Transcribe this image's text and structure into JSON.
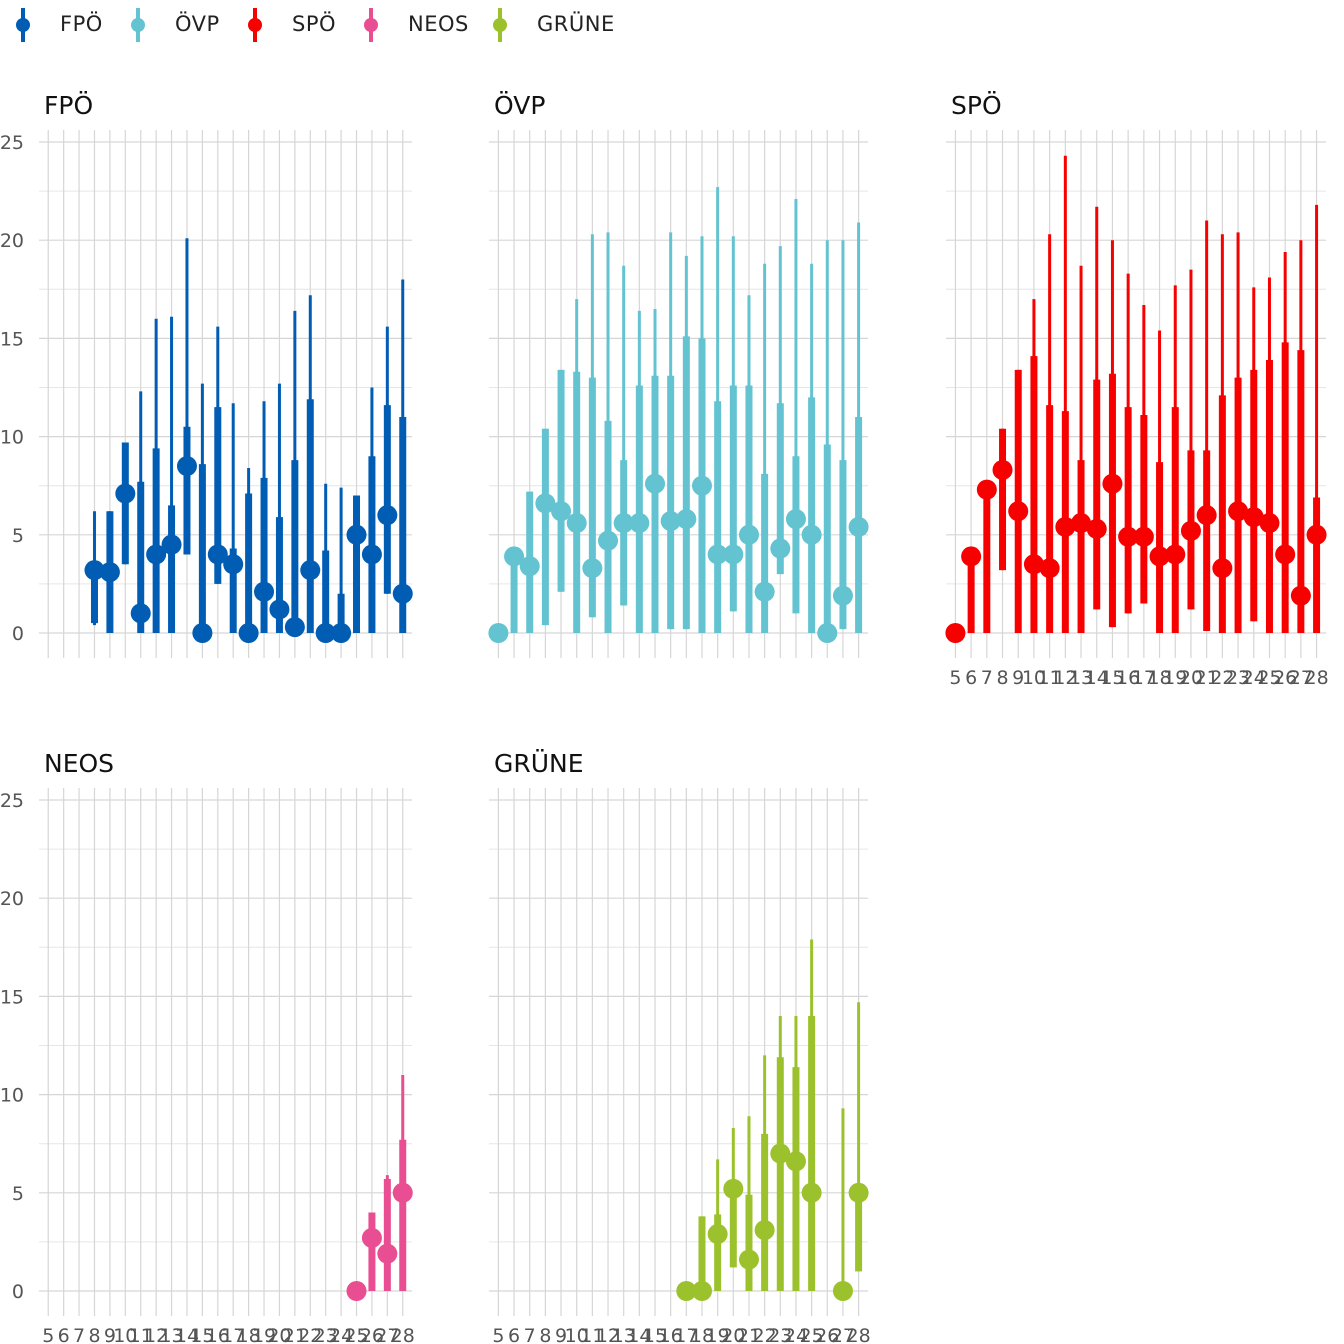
{
  "legend": [
    {
      "label": "FPÖ",
      "color": "#005db3"
    },
    {
      "label": "ÖVP",
      "color": "#63c3d0"
    },
    {
      "label": "SPÖ",
      "color": "#f70000"
    },
    {
      "label": "NEOS",
      "color": "#e84e91"
    },
    {
      "label": "GRÜNE",
      "color": "#9bc22c"
    }
  ],
  "chart_data": [
    {
      "type": "pointrange",
      "title": "FPÖ",
      "color": "#005db3",
      "x_ticks": [
        5,
        6,
        7,
        8,
        9,
        10,
        11,
        12,
        13,
        14,
        15,
        16,
        17,
        18,
        19,
        20,
        21,
        22,
        23,
        24,
        25,
        26,
        27,
        28
      ],
      "y_ticks": [
        0,
        5,
        10,
        15,
        20,
        25
      ],
      "ylim": [
        -1.2,
        25.5
      ],
      "points": [
        {
          "x": 8,
          "y": 3.2,
          "lo50": 0.5,
          "hi50": 3.2,
          "lo90": 0.4,
          "hi90": 6.2
        },
        {
          "x": 9,
          "y": 3.1,
          "lo50": 0.0,
          "hi50": 6.2,
          "lo90": 0.0,
          "hi90": 6.2
        },
        {
          "x": 10,
          "y": 7.1,
          "lo50": 3.5,
          "hi50": 9.7,
          "lo90": 3.5,
          "hi90": 9.7
        },
        {
          "x": 11,
          "y": 1.0,
          "lo50": 0.0,
          "hi50": 7.7,
          "lo90": 0.0,
          "hi90": 12.3
        },
        {
          "x": 12,
          "y": 4.0,
          "lo50": 0.0,
          "hi50": 9.4,
          "lo90": 0.0,
          "hi90": 16.0
        },
        {
          "x": 13,
          "y": 4.5,
          "lo50": 0.0,
          "hi50": 6.5,
          "lo90": 0.0,
          "hi90": 16.1
        },
        {
          "x": 14,
          "y": 8.5,
          "lo50": 4.0,
          "hi50": 10.5,
          "lo90": 4.0,
          "hi90": 20.1
        },
        {
          "x": 15,
          "y": 0.0,
          "lo50": 0.0,
          "hi50": 8.6,
          "lo90": 0.0,
          "hi90": 12.7
        },
        {
          "x": 16,
          "y": 4.0,
          "lo50": 2.5,
          "hi50": 11.5,
          "lo90": 2.5,
          "hi90": 15.6
        },
        {
          "x": 17,
          "y": 3.5,
          "lo50": 0.0,
          "hi50": 4.3,
          "lo90": 0.0,
          "hi90": 11.7
        },
        {
          "x": 18,
          "y": 0.0,
          "lo50": 0.0,
          "hi50": 7.1,
          "lo90": 0.0,
          "hi90": 8.4
        },
        {
          "x": 19,
          "y": 2.1,
          "lo50": 0.0,
          "hi50": 7.9,
          "lo90": 0.0,
          "hi90": 11.8
        },
        {
          "x": 20,
          "y": 1.2,
          "lo50": 0.0,
          "hi50": 5.9,
          "lo90": 0.0,
          "hi90": 12.7
        },
        {
          "x": 21,
          "y": 0.3,
          "lo50": 0.0,
          "hi50": 8.8,
          "lo90": 0.0,
          "hi90": 16.4
        },
        {
          "x": 22,
          "y": 3.2,
          "lo50": 0.0,
          "hi50": 11.9,
          "lo90": 0.0,
          "hi90": 17.2
        },
        {
          "x": 23,
          "y": 0.0,
          "lo50": 0.0,
          "hi50": 4.2,
          "lo90": 0.0,
          "hi90": 7.6
        },
        {
          "x": 24,
          "y": 0.0,
          "lo50": 0.0,
          "hi50": 2.0,
          "lo90": 0.0,
          "hi90": 7.4
        },
        {
          "x": 25,
          "y": 5.0,
          "lo50": 0.0,
          "hi50": 7.0,
          "lo90": 0.0,
          "hi90": 7.0
        },
        {
          "x": 26,
          "y": 4.0,
          "lo50": 0.0,
          "hi50": 9.0,
          "lo90": 0.0,
          "hi90": 12.5
        },
        {
          "x": 27,
          "y": 6.0,
          "lo50": 2.0,
          "hi50": 11.6,
          "lo90": 2.0,
          "hi90": 15.6
        },
        {
          "x": 28,
          "y": 2.0,
          "lo50": 0.0,
          "hi50": 11.0,
          "lo90": 0.0,
          "hi90": 18.0
        }
      ]
    },
    {
      "type": "pointrange",
      "title": "ÖVP",
      "color": "#63c3d0",
      "x_ticks": [
        5,
        6,
        7,
        8,
        9,
        10,
        11,
        12,
        13,
        14,
        15,
        16,
        17,
        18,
        19,
        20,
        21,
        22,
        23,
        24,
        25,
        26,
        27,
        28
      ],
      "y_ticks": [
        0,
        5,
        10,
        15,
        20,
        25
      ],
      "ylim": [
        -1.2,
        25.5
      ],
      "points": [
        {
          "x": 5,
          "y": 0.0,
          "lo50": 0.0,
          "hi50": 0.0,
          "lo90": 0.0,
          "hi90": 0.0
        },
        {
          "x": 6,
          "y": 3.9,
          "lo50": 0.0,
          "hi50": 3.9,
          "lo90": 0.0,
          "hi90": 3.9
        },
        {
          "x": 7,
          "y": 3.4,
          "lo50": 0.0,
          "hi50": 7.2,
          "lo90": 0.0,
          "hi90": 7.2
        },
        {
          "x": 8,
          "y": 6.6,
          "lo50": 0.4,
          "hi50": 10.4,
          "lo90": 0.4,
          "hi90": 10.4
        },
        {
          "x": 9,
          "y": 6.2,
          "lo50": 2.1,
          "hi50": 13.4,
          "lo90": 2.1,
          "hi90": 13.4
        },
        {
          "x": 10,
          "y": 5.6,
          "lo50": 0.0,
          "hi50": 13.3,
          "lo90": 0.0,
          "hi90": 17.0
        },
        {
          "x": 11,
          "y": 3.3,
          "lo50": 0.8,
          "hi50": 13.0,
          "lo90": 0.8,
          "hi90": 20.3
        },
        {
          "x": 12,
          "y": 4.7,
          "lo50": 0.0,
          "hi50": 10.8,
          "lo90": 0.0,
          "hi90": 20.4
        },
        {
          "x": 13,
          "y": 5.6,
          "lo50": 1.4,
          "hi50": 8.8,
          "lo90": 1.4,
          "hi90": 18.7
        },
        {
          "x": 14,
          "y": 5.6,
          "lo50": 0.0,
          "hi50": 12.6,
          "lo90": 0.0,
          "hi90": 16.4
        },
        {
          "x": 15,
          "y": 7.6,
          "lo50": 0.0,
          "hi50": 13.1,
          "lo90": 0.0,
          "hi90": 16.5
        },
        {
          "x": 16,
          "y": 5.7,
          "lo50": 0.2,
          "hi50": 13.1,
          "lo90": 0.2,
          "hi90": 20.4
        },
        {
          "x": 17,
          "y": 5.8,
          "lo50": 0.2,
          "hi50": 15.1,
          "lo90": 0.2,
          "hi90": 19.2
        },
        {
          "x": 18,
          "y": 7.5,
          "lo50": 0.0,
          "hi50": 15.0,
          "lo90": 0.0,
          "hi90": 20.2
        },
        {
          "x": 19,
          "y": 4.0,
          "lo50": 0.0,
          "hi50": 11.8,
          "lo90": 0.0,
          "hi90": 22.7
        },
        {
          "x": 20,
          "y": 4.0,
          "lo50": 1.1,
          "hi50": 12.6,
          "lo90": 1.1,
          "hi90": 20.2
        },
        {
          "x": 21,
          "y": 5.0,
          "lo50": 0.0,
          "hi50": 12.6,
          "lo90": 0.0,
          "hi90": 17.2
        },
        {
          "x": 22,
          "y": 2.1,
          "lo50": 0.0,
          "hi50": 8.1,
          "lo90": 0.0,
          "hi90": 18.8
        },
        {
          "x": 23,
          "y": 4.3,
          "lo50": 3.0,
          "hi50": 11.7,
          "lo90": 3.0,
          "hi90": 19.7
        },
        {
          "x": 24,
          "y": 5.8,
          "lo50": 1.0,
          "hi50": 9.0,
          "lo90": 1.0,
          "hi90": 22.1
        },
        {
          "x": 25,
          "y": 5.0,
          "lo50": 0.0,
          "hi50": 12.0,
          "lo90": 0.0,
          "hi90": 18.8
        },
        {
          "x": 26,
          "y": 0.0,
          "lo50": 0.0,
          "hi50": 9.6,
          "lo90": 0.0,
          "hi90": 20.0
        },
        {
          "x": 27,
          "y": 1.9,
          "lo50": 0.2,
          "hi50": 8.8,
          "lo90": 0.2,
          "hi90": 20.0
        },
        {
          "x": 28,
          "y": 5.4,
          "lo50": 0.0,
          "hi50": 11.0,
          "lo90": 0.0,
          "hi90": 20.9
        }
      ]
    },
    {
      "type": "pointrange",
      "title": "SPÖ",
      "color": "#f70000",
      "x_ticks": [
        5,
        6,
        7,
        8,
        9,
        10,
        11,
        12,
        13,
        14,
        15,
        16,
        17,
        18,
        19,
        20,
        21,
        22,
        23,
        24,
        25,
        26,
        27,
        28
      ],
      "x_tick_labels": [
        "5",
        "6",
        "7",
        "8",
        "9",
        "10",
        "11",
        "12",
        "13",
        "14",
        "15",
        "16",
        "17",
        "18",
        "19",
        "20",
        "21",
        "22",
        "23",
        "24",
        "25",
        "26",
        "27",
        "28"
      ],
      "y_ticks": [
        0,
        5,
        10,
        15,
        20,
        25
      ],
      "ylim": [
        -1.2,
        25.5
      ],
      "points": [
        {
          "x": 5,
          "y": 0.0,
          "lo50": 0.0,
          "hi50": 0.0,
          "lo90": 0.0,
          "hi90": 0.0
        },
        {
          "x": 6,
          "y": 3.9,
          "lo50": 0.0,
          "hi50": 3.9,
          "lo90": 0.0,
          "hi90": 3.9
        },
        {
          "x": 7,
          "y": 7.3,
          "lo50": 0.0,
          "hi50": 7.3,
          "lo90": 0.0,
          "hi90": 7.3
        },
        {
          "x": 8,
          "y": 8.3,
          "lo50": 3.2,
          "hi50": 10.4,
          "lo90": 3.2,
          "hi90": 10.4
        },
        {
          "x": 9,
          "y": 6.2,
          "lo50": 0.0,
          "hi50": 13.4,
          "lo90": 0.0,
          "hi90": 13.4
        },
        {
          "x": 10,
          "y": 3.5,
          "lo50": 0.0,
          "hi50": 14.1,
          "lo90": 0.0,
          "hi90": 17.0
        },
        {
          "x": 11,
          "y": 3.3,
          "lo50": 0.0,
          "hi50": 11.6,
          "lo90": 0.0,
          "hi90": 20.3
        },
        {
          "x": 12,
          "y": 5.4,
          "lo50": 0.0,
          "hi50": 11.3,
          "lo90": 0.0,
          "hi90": 24.3
        },
        {
          "x": 13,
          "y": 5.6,
          "lo50": 0.0,
          "hi50": 8.8,
          "lo90": 0.0,
          "hi90": 18.7
        },
        {
          "x": 14,
          "y": 5.3,
          "lo50": 1.2,
          "hi50": 12.9,
          "lo90": 1.2,
          "hi90": 21.7
        },
        {
          "x": 15,
          "y": 7.6,
          "lo50": 0.3,
          "hi50": 13.2,
          "lo90": 0.3,
          "hi90": 20.0
        },
        {
          "x": 16,
          "y": 4.9,
          "lo50": 1.0,
          "hi50": 11.5,
          "lo90": 1.0,
          "hi90": 18.3
        },
        {
          "x": 17,
          "y": 4.9,
          "lo50": 1.5,
          "hi50": 11.1,
          "lo90": 1.5,
          "hi90": 16.7
        },
        {
          "x": 18,
          "y": 3.9,
          "lo50": 0.0,
          "hi50": 8.7,
          "lo90": 0.0,
          "hi90": 15.4
        },
        {
          "x": 19,
          "y": 4.0,
          "lo50": 0.0,
          "hi50": 11.5,
          "lo90": 0.0,
          "hi90": 17.7
        },
        {
          "x": 20,
          "y": 5.2,
          "lo50": 1.2,
          "hi50": 9.3,
          "lo90": 1.2,
          "hi90": 18.5
        },
        {
          "x": 21,
          "y": 6.0,
          "lo50": 0.1,
          "hi50": 9.3,
          "lo90": 0.1,
          "hi90": 21.0
        },
        {
          "x": 22,
          "y": 3.3,
          "lo50": 0.0,
          "hi50": 12.1,
          "lo90": 0.0,
          "hi90": 20.3
        },
        {
          "x": 23,
          "y": 6.2,
          "lo50": 0.0,
          "hi50": 13.0,
          "lo90": 0.0,
          "hi90": 20.4
        },
        {
          "x": 24,
          "y": 5.9,
          "lo50": 0.6,
          "hi50": 13.4,
          "lo90": 0.6,
          "hi90": 17.6
        },
        {
          "x": 25,
          "y": 5.6,
          "lo50": 0.0,
          "hi50": 13.9,
          "lo90": 0.0,
          "hi90": 18.1
        },
        {
          "x": 26,
          "y": 4.0,
          "lo50": 0.0,
          "hi50": 14.8,
          "lo90": 0.0,
          "hi90": 19.4
        },
        {
          "x": 27,
          "y": 1.9,
          "lo50": 0.0,
          "hi50": 14.4,
          "lo90": 0.0,
          "hi90": 20.0
        },
        {
          "x": 28,
          "y": 5.0,
          "lo50": 0.0,
          "hi50": 6.9,
          "lo90": 0.0,
          "hi90": 21.8
        }
      ]
    },
    {
      "type": "pointrange",
      "title": "NEOS",
      "color": "#e84e91",
      "x_ticks": [
        5,
        6,
        7,
        8,
        9,
        10,
        11,
        12,
        13,
        14,
        15,
        16,
        17,
        18,
        19,
        20,
        21,
        22,
        23,
        24,
        25,
        26,
        27,
        28
      ],
      "x_tick_labels": [
        "5",
        "6",
        "7",
        "8",
        "9",
        "10",
        "11",
        "12",
        "13",
        "14",
        "15",
        "16",
        "17",
        "18",
        "19",
        "20",
        "21",
        "22",
        "23",
        "24",
        "25",
        "26",
        "27",
        "28"
      ],
      "y_ticks": [
        0,
        5,
        10,
        15,
        20,
        25
      ],
      "ylim": [
        -1.2,
        25.5
      ],
      "points": [
        {
          "x": 25,
          "y": 0.0,
          "lo50": 0.0,
          "hi50": 0.0,
          "lo90": 0.0,
          "hi90": 0.0
        },
        {
          "x": 26,
          "y": 2.7,
          "lo50": 0.0,
          "hi50": 4.0,
          "lo90": 0.0,
          "hi90": 4.0
        },
        {
          "x": 27,
          "y": 1.9,
          "lo50": 0.0,
          "hi50": 5.7,
          "lo90": 0.0,
          "hi90": 5.9
        },
        {
          "x": 28,
          "y": 5.0,
          "lo50": 0.0,
          "hi50": 7.7,
          "lo90": 0.0,
          "hi90": 11.0
        }
      ]
    },
    {
      "type": "pointrange",
      "title": "GRÜNE",
      "color": "#9bc22c",
      "x_ticks": [
        5,
        6,
        7,
        8,
        9,
        10,
        11,
        12,
        13,
        14,
        15,
        16,
        17,
        18,
        19,
        20,
        21,
        22,
        23,
        24,
        25,
        26,
        27,
        28
      ],
      "x_tick_labels": [
        "5",
        "6",
        "7",
        "8",
        "9",
        "10",
        "11",
        "12",
        "13",
        "14",
        "15",
        "16",
        "17",
        "18",
        "19",
        "20",
        "21",
        "22",
        "23",
        "24",
        "25",
        "26",
        "27",
        "28"
      ],
      "y_ticks": [
        0,
        5,
        10,
        15,
        20,
        25
      ],
      "ylim": [
        -1.2,
        25.5
      ],
      "points": [
        {
          "x": 17,
          "y": 0.0,
          "lo50": 0.0,
          "hi50": 0.0,
          "lo90": 0.0,
          "hi90": 0.0
        },
        {
          "x": 18,
          "y": 0.0,
          "lo50": 0.0,
          "hi50": 3.8,
          "lo90": 0.0,
          "hi90": 3.8
        },
        {
          "x": 19,
          "y": 2.9,
          "lo50": 0.0,
          "hi50": 3.9,
          "lo90": 0.0,
          "hi90": 6.7
        },
        {
          "x": 20,
          "y": 5.2,
          "lo50": 1.2,
          "hi50": 5.2,
          "lo90": 1.2,
          "hi90": 8.3
        },
        {
          "x": 21,
          "y": 1.6,
          "lo50": 0.0,
          "hi50": 4.9,
          "lo90": 0.0,
          "hi90": 8.9
        },
        {
          "x": 22,
          "y": 3.1,
          "lo50": 0.0,
          "hi50": 8.0,
          "lo90": 0.0,
          "hi90": 12.0
        },
        {
          "x": 23,
          "y": 7.0,
          "lo50": 0.0,
          "hi50": 11.9,
          "lo90": 0.0,
          "hi90": 14.0
        },
        {
          "x": 24,
          "y": 6.6,
          "lo50": 0.0,
          "hi50": 11.4,
          "lo90": 0.0,
          "hi90": 14.0
        },
        {
          "x": 25,
          "y": 5.0,
          "lo50": 0.0,
          "hi50": 14.0,
          "lo90": 0.0,
          "hi90": 17.9
        },
        {
          "x": 27,
          "y": 0.0,
          "lo50": 0.0,
          "hi50": 0.0,
          "lo90": 0.0,
          "hi90": 9.3
        },
        {
          "x": 28,
          "y": 5.0,
          "lo50": 1.0,
          "hi50": 5.0,
          "lo90": 1.0,
          "hi90": 14.7
        }
      ]
    }
  ]
}
